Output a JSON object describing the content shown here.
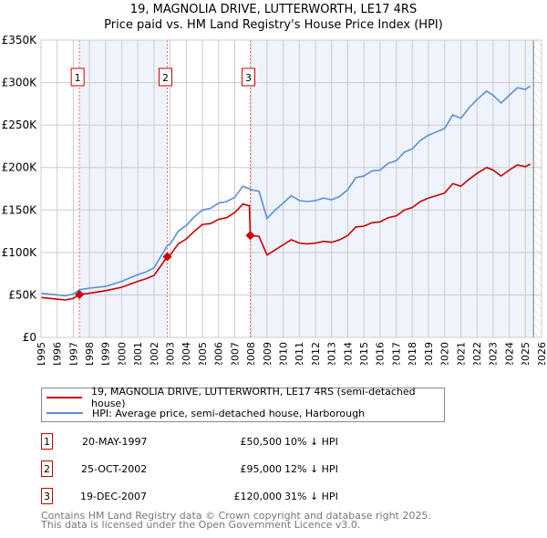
{
  "header": {
    "title": "19, MAGNOLIA DRIVE, LUTTERWORTH, LE17 4RS",
    "subtitle": "Price paid vs. HM Land Registry's House Price Index (HPI)"
  },
  "colors": {
    "property": "#cc0000",
    "hpi": "#5b8fd6",
    "shade": "#eef3fc"
  },
  "chart_data": {
    "type": "line",
    "title": "19, MAGNOLIA DRIVE, LUTTERWORTH, LE17 4RS — Price paid vs. HM Land Registry's House Price Index (HPI)",
    "xlim": [
      1995,
      2026
    ],
    "ylim": [
      0,
      350000
    ],
    "x_ticks": [
      "1995",
      "1996",
      "1997",
      "1998",
      "1999",
      "2000",
      "2001",
      "2002",
      "2003",
      "2004",
      "2005",
      "2006",
      "2007",
      "2008",
      "2009",
      "2010",
      "2011",
      "2012",
      "2013",
      "2014",
      "2015",
      "2016",
      "2017",
      "2018",
      "2019",
      "2020",
      "2021",
      "2022",
      "2023",
      "2024",
      "2025",
      "2026"
    ],
    "y_ticks": [
      {
        "v": 0,
        "label": "£0"
      },
      {
        "v": 50000,
        "label": "£50K"
      },
      {
        "v": 100000,
        "label": "£100K"
      },
      {
        "v": 150000,
        "label": "£150K"
      },
      {
        "v": 200000,
        "label": "£200K"
      },
      {
        "v": 250000,
        "label": "£250K"
      },
      {
        "v": 300000,
        "label": "£300K"
      },
      {
        "v": 350000,
        "label": "£350K"
      }
    ],
    "grid": true,
    "forecast_start": 2025.5,
    "x": [
      1995,
      1996,
      1996.5,
      1997,
      1997.38,
      1998,
      1999,
      2000,
      2001,
      2001.5,
      2002,
      2002.82,
      2003,
      2003.5,
      2004,
      2004.5,
      2005,
      2005.5,
      2006,
      2006.5,
      2007,
      2007.5,
      2007.9,
      2007.96,
      2008.5,
      2009,
      2009.5,
      2010,
      2010.5,
      2011,
      2011.5,
      2012,
      2012.5,
      2013,
      2013.5,
      2014,
      2014.5,
      2015,
      2015.5,
      2016,
      2016.5,
      2017,
      2017.5,
      2018,
      2018.5,
      2019,
      2019.5,
      2020,
      2020.5,
      2021,
      2021.5,
      2022,
      2022.6,
      2023,
      2023.5,
      2024,
      2024.5,
      2025,
      2025.3
    ],
    "series": [
      {
        "name": "19, MAGNOLIA DRIVE, LUTTERWORTH, LE17 4RS (semi-detached house)",
        "color": "#cc0000",
        "values": [
          47,
          45,
          44,
          46,
          50.5,
          52,
          55,
          59,
          66,
          69,
          73,
          95,
          97,
          110,
          116,
          125,
          133,
          134,
          139,
          141,
          147,
          157,
          155,
          120,
          119,
          97,
          103,
          109,
          115,
          111,
          110,
          111,
          113,
          112,
          115,
          120,
          130,
          131,
          135,
          136,
          141,
          143,
          150,
          153,
          160,
          164,
          167,
          170,
          181,
          178,
          186,
          193,
          200,
          197,
          190,
          197,
          203,
          201,
          204
        ]
      },
      {
        "name": "HPI: Average price, semi-detached house, Harborough",
        "color": "#5b8fd6",
        "values": [
          52,
          50,
          49,
          51,
          56,
          58,
          60,
          66,
          74,
          77,
          82,
          108,
          110,
          125,
          132,
          142,
          150,
          152,
          158,
          160,
          165,
          178,
          175,
          174,
          172,
          140,
          150,
          158,
          167,
          161,
          160,
          161,
          164,
          162,
          166,
          174,
          188,
          190,
          196,
          197,
          205,
          208,
          218,
          222,
          232,
          238,
          242,
          246,
          262,
          258,
          270,
          280,
          290,
          285,
          276,
          285,
          294,
          292,
          296
        ]
      }
    ],
    "value_unit": "thousands GBP",
    "sales": [
      {
        "id": "1",
        "x": 1997.38,
        "price": 50500
      },
      {
        "id": "2",
        "x": 2002.82,
        "price": 95000
      },
      {
        "id": "3",
        "x": 2007.96,
        "price": 120000
      }
    ],
    "legend_placement": "below"
  },
  "legend": {
    "property": "19, MAGNOLIA DRIVE, LUTTERWORTH, LE17 4RS (semi-detached house)",
    "hpi": "HPI: Average price, semi-detached house, Harborough"
  },
  "transactions": [
    {
      "num": "1",
      "date": "20-MAY-1997",
      "price": "£50,500",
      "diff": "10% ↓ HPI"
    },
    {
      "num": "2",
      "date": "25-OCT-2002",
      "price": "£95,000",
      "diff": "12% ↓ HPI"
    },
    {
      "num": "3",
      "date": "19-DEC-2007",
      "price": "£120,000",
      "diff": "31% ↓ HPI"
    }
  ],
  "footer": {
    "line1": "Contains HM Land Registry data © Crown copyright and database right 2025.",
    "line2": "This data is licensed under the Open Government Licence v3.0."
  }
}
